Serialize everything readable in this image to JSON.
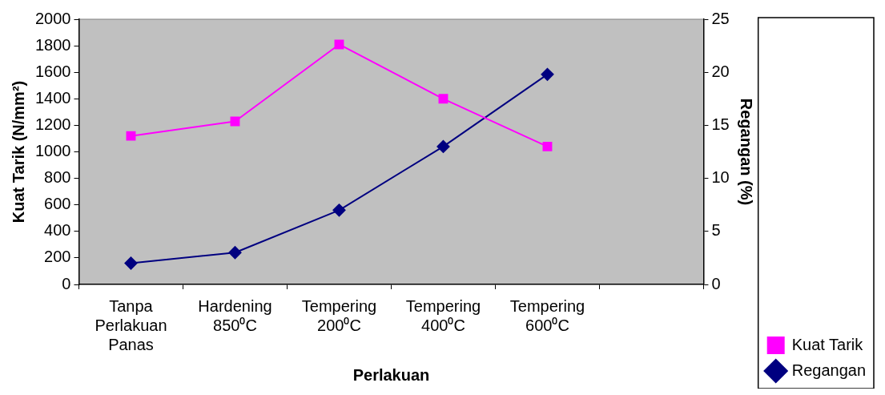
{
  "chart_data": {
    "type": "line",
    "xlabel": "Perlakuan",
    "ylabel": "Kuat Tarik (N/mm²)",
    "y2label": "Regangan (%)",
    "categories": [
      "Tanpa Perlakuan Panas",
      "Hardening 850⁰C",
      "Tempering 200⁰C",
      "Tempering 400⁰C",
      "Tempering 600⁰C",
      null
    ],
    "series": [
      {
        "name": "Kuat Tarik",
        "color": "#ff00ff",
        "marker": "square",
        "values": [
          1120,
          1230,
          1810,
          1400,
          1040,
          null
        ]
      },
      {
        "name": "Regangan",
        "color": "#000080",
        "marker": "diamond",
        "axis": "y2",
        "values": [
          2,
          3,
          7,
          13,
          19.8,
          null
        ]
      }
    ],
    "ylim": [
      0,
      2000
    ],
    "yticks": [
      0,
      200,
      400,
      600,
      800,
      1000,
      1200,
      1400,
      1600,
      1800,
      2000
    ],
    "y2lim": [
      0,
      25
    ],
    "y2ticks": [
      0,
      5,
      10,
      15,
      20,
      25
    ],
    "grid": false,
    "legend": "bottom right"
  }
}
